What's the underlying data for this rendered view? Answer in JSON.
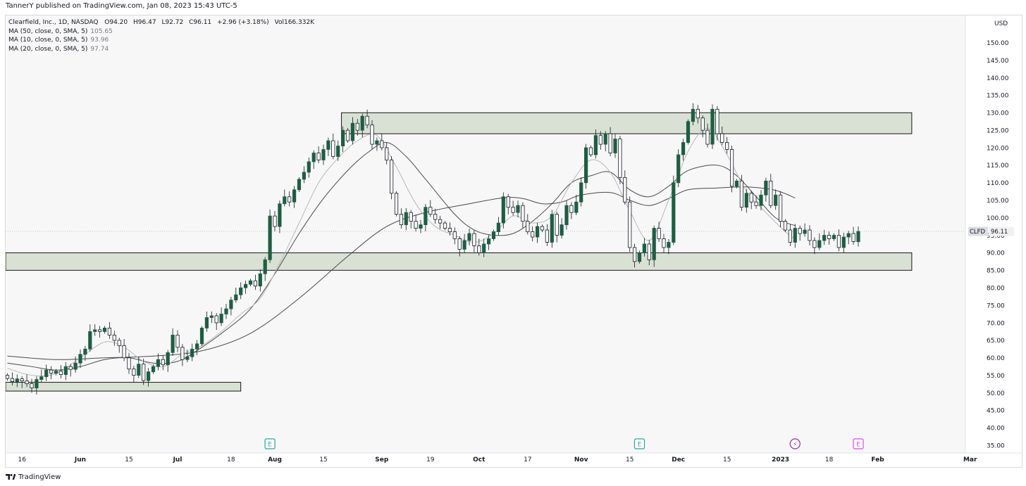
{
  "publish": {
    "author": "TannerY",
    "text": "TannerY published on TradingView.com, Jan 08, 2023 15:43 UTC-5"
  },
  "legend": {
    "symbol_line": "Clearfield, Inc., 1D, NASDAQ",
    "open": "O94.20",
    "high": "H96.47",
    "low": "L92.72",
    "close": "C96.11",
    "change": "+2.96 (+3.18%)",
    "volume": "Vol166.332K",
    "ma": [
      {
        "label": "MA (50, close, 0, SMA, 5)",
        "value": "105.65"
      },
      {
        "label": "MA (10, close, 0, SMA, 5)",
        "value": "93.96"
      },
      {
        "label": "MA (20, close, 0, SMA, 5)",
        "value": "97.74"
      }
    ]
  },
  "footer": {
    "brand": "TradingView",
    "logo_icon": "tradingview-logo-icon"
  },
  "colors": {
    "up": "#1e5e43",
    "down": "#131722",
    "zone_fill": "#d9e1d4",
    "zone_border": "#000000",
    "ma_line": "#4a4a4a",
    "ma_fast_line": "#b8b8b8",
    "earnings": "#26a69a",
    "dividend": "#9c27b0",
    "future_earnings": "#e040fb"
  },
  "chart_data": {
    "type": "candlestick",
    "title": "Clearfield, Inc., 1D, NASDAQ",
    "ylabel": "USD",
    "ylim": [
      33,
      157
    ],
    "y_ticks": [
      35,
      40,
      45,
      50,
      55,
      60,
      65,
      70,
      75,
      80,
      85,
      90,
      95,
      100,
      105,
      110,
      115,
      120,
      125,
      130,
      135,
      140,
      145,
      150
    ],
    "y_tick_labels": [
      "35.00",
      "40.00",
      "45.00",
      "50.00",
      "55.00",
      "60.00",
      "65.00",
      "70.00",
      "75.00",
      "80.00",
      "85.00",
      "90.00",
      "95.00",
      "100.00",
      "105.00",
      "110.00",
      "115.00",
      "120.00",
      "125.00",
      "130.00",
      "135.00",
      "140.00",
      "145.00",
      "150.00"
    ],
    "x_ticks": [
      {
        "label": "16",
        "bold": false,
        "bar": 3
      },
      {
        "label": "Jun",
        "bold": true,
        "bar": 15
      },
      {
        "label": "15",
        "bold": false,
        "bar": 25
      },
      {
        "label": "Jul",
        "bold": true,
        "bar": 35
      },
      {
        "label": "18",
        "bold": false,
        "bar": 46
      },
      {
        "label": "Aug",
        "bold": true,
        "bar": 55
      },
      {
        "label": "15",
        "bold": false,
        "bar": 65
      },
      {
        "label": "Sep",
        "bold": true,
        "bar": 77
      },
      {
        "label": "19",
        "bold": false,
        "bar": 87
      },
      {
        "label": "Oct",
        "bold": true,
        "bar": 97
      },
      {
        "label": "17",
        "bold": false,
        "bar": 107
      },
      {
        "label": "Nov",
        "bold": true,
        "bar": 118
      },
      {
        "label": "15",
        "bold": false,
        "bar": 128
      },
      {
        "label": "Dec",
        "bold": true,
        "bar": 138
      },
      {
        "label": "15",
        "bold": false,
        "bar": 148
      },
      {
        "label": "2023",
        "bold": true,
        "bar": 159
      },
      {
        "label": "18",
        "bold": false,
        "bar": 169
      },
      {
        "label": "Feb",
        "bold": true,
        "bar": 179
      },
      {
        "label": "Mar",
        "bold": true,
        "bar": 198
      }
    ],
    "last_price": {
      "symbol": "CLFD",
      "value": "96.11",
      "price": 96.11
    },
    "zones": [
      {
        "bar_start": 69,
        "bar_end": 186,
        "top": 130.0,
        "bottom": 124.0,
        "extend_left": false
      },
      {
        "bar_start": 0,
        "bar_end": 186,
        "top": 90.0,
        "bottom": 85.0,
        "extend_left": true
      },
      {
        "bar_start": 0,
        "bar_end": 48,
        "top": 53.0,
        "bottom": 50.5,
        "extend_left": true
      }
    ],
    "events": [
      {
        "type": "earnings",
        "label": "E",
        "bar": 54
      },
      {
        "type": "earnings",
        "label": "E",
        "bar": 130
      },
      {
        "type": "dividend",
        "label": "⚡",
        "bar": 162
      },
      {
        "type": "future_earnings",
        "label": "E",
        "bar": 175
      }
    ],
    "candles": [
      [
        55.0,
        54.1
      ],
      [
        54.1,
        53.2
      ],
      [
        53.2,
        54.0
      ],
      [
        54.0,
        53.4
      ],
      [
        53.4,
        52.6
      ],
      [
        52.6,
        51.4
      ],
      [
        51.4,
        53.8
      ],
      [
        53.8,
        54.6
      ],
      [
        54.6,
        56.5
      ],
      [
        56.5,
        55.6
      ],
      [
        55.6,
        56.2
      ],
      [
        56.2,
        55.2
      ],
      [
        55.2,
        57.5
      ],
      [
        57.5,
        56.7
      ],
      [
        56.7,
        58.5
      ],
      [
        58.5,
        61.0
      ],
      [
        61.0,
        62.5
      ],
      [
        62.5,
        67.5
      ],
      [
        67.5,
        68.0
      ],
      [
        68.0,
        67.5
      ],
      [
        67.5,
        68.5
      ],
      [
        68.5,
        66.5
      ],
      [
        66.5,
        65.0
      ],
      [
        65.0,
        63.5
      ],
      [
        63.5,
        60.0
      ],
      [
        60.0,
        56.8
      ],
      [
        56.8,
        55.0
      ],
      [
        55.0,
        58.2
      ],
      [
        58.2,
        53.5
      ],
      [
        53.5,
        56.0
      ],
      [
        56.0,
        57.5
      ],
      [
        57.5,
        59.5
      ],
      [
        59.5,
        58.0
      ],
      [
        58.0,
        61.5
      ],
      [
        61.5,
        66.5
      ],
      [
        66.5,
        63.0
      ],
      [
        63.0,
        59.5
      ],
      [
        59.5,
        60.3
      ],
      [
        60.3,
        62.5
      ],
      [
        62.5,
        64.0
      ],
      [
        64.0,
        68.5
      ],
      [
        68.5,
        71.5
      ],
      [
        71.5,
        72.0
      ],
      [
        72.0,
        70.0
      ],
      [
        70.0,
        72.5
      ],
      [
        72.5,
        74.0
      ],
      [
        74.0,
        76.5
      ],
      [
        76.5,
        78.0
      ],
      [
        78.0,
        80.0
      ],
      [
        80.0,
        81.0
      ],
      [
        81.0,
        82.0
      ],
      [
        82.0,
        80.5
      ],
      [
        80.5,
        84.0
      ],
      [
        84.0,
        88.0
      ],
      [
        88.0,
        100.5
      ],
      [
        100.5,
        97.5
      ],
      [
        97.5,
        104.0
      ],
      [
        104.0,
        106.0
      ],
      [
        106.0,
        104.5
      ],
      [
        104.5,
        108.0
      ],
      [
        108.0,
        111.0
      ],
      [
        111.0,
        113.0
      ],
      [
        113.0,
        116.0
      ],
      [
        116.0,
        118.5
      ],
      [
        118.5,
        116.5
      ],
      [
        116.5,
        119.5
      ],
      [
        119.5,
        122.0
      ],
      [
        122.0,
        117.5
      ],
      [
        117.5,
        120.5
      ],
      [
        120.5,
        125.0
      ],
      [
        125.0,
        122.0
      ],
      [
        122.0,
        127.0
      ],
      [
        127.0,
        125.0
      ],
      [
        125.0,
        129.0
      ],
      [
        129.0,
        126.5
      ],
      [
        126.5,
        121.0
      ],
      [
        121.0,
        122.0
      ],
      [
        122.0,
        120.0
      ],
      [
        120.0,
        116.5
      ],
      [
        116.5,
        107.0
      ],
      [
        107.0,
        101.0
      ],
      [
        101.0,
        98.0
      ],
      [
        98.0,
        101.5
      ],
      [
        101.5,
        99.0
      ],
      [
        99.0,
        97.0
      ],
      [
        97.0,
        98.0
      ],
      [
        98.0,
        103.0
      ],
      [
        103.0,
        101.0
      ],
      [
        101.0,
        99.5
      ],
      [
        99.5,
        98.5
      ],
      [
        98.5,
        97.0
      ],
      [
        97.0,
        96.0
      ],
      [
        96.0,
        94.0
      ],
      [
        94.0,
        91.0
      ],
      [
        91.0,
        93.5
      ],
      [
        93.5,
        95.5
      ],
      [
        95.5,
        92.0
      ],
      [
        92.0,
        90.0
      ],
      [
        90.0,
        92.5
      ],
      [
        92.5,
        94.0
      ],
      [
        94.0,
        96.0
      ],
      [
        96.0,
        98.5
      ],
      [
        98.5,
        106.0
      ],
      [
        106.0,
        103.0
      ],
      [
        103.0,
        101.5
      ],
      [
        101.5,
        103.5
      ],
      [
        103.5,
        99.0
      ],
      [
        99.0,
        96.0
      ],
      [
        96.0,
        94.5
      ],
      [
        94.5,
        97.5
      ],
      [
        97.5,
        96.5
      ],
      [
        96.5,
        93.0
      ],
      [
        93.0,
        101.0
      ],
      [
        101.0,
        95.0
      ],
      [
        95.0,
        98.0
      ],
      [
        98.0,
        103.5
      ],
      [
        103.5,
        101.5
      ],
      [
        101.5,
        104.5
      ],
      [
        104.5,
        110.0
      ],
      [
        110.0,
        120.0
      ],
      [
        120.0,
        118.0
      ],
      [
        118.0,
        123.5
      ],
      [
        123.5,
        121.0
      ],
      [
        121.0,
        124.0
      ],
      [
        124.0,
        118.5
      ],
      [
        118.5,
        122.5
      ],
      [
        122.5,
        111.5
      ],
      [
        111.5,
        104.5
      ],
      [
        104.5,
        91.5
      ],
      [
        91.5,
        87.5
      ],
      [
        87.5,
        90.0
      ],
      [
        90.0,
        92.5
      ],
      [
        92.5,
        88.0
      ],
      [
        88.0,
        97.0
      ],
      [
        97.0,
        94.0
      ],
      [
        94.0,
        91.5
      ],
      [
        91.5,
        93.0
      ],
      [
        93.0,
        110.0
      ],
      [
        110.0,
        118.0
      ],
      [
        118.0,
        121.5
      ],
      [
        121.5,
        127.5
      ],
      [
        127.5,
        131.0
      ],
      [
        131.0,
        128.5
      ],
      [
        128.5,
        125.0
      ],
      [
        125.0,
        121.0
      ],
      [
        121.0,
        131.0
      ],
      [
        131.0,
        124.0
      ],
      [
        124.0,
        121.5
      ],
      [
        121.5,
        119.5
      ],
      [
        119.5,
        109.0
      ],
      [
        109.0,
        110.5
      ],
      [
        110.5,
        103.0
      ],
      [
        103.0,
        107.0
      ],
      [
        107.0,
        104.5
      ],
      [
        104.5,
        103.5
      ],
      [
        103.5,
        106.5
      ],
      [
        106.5,
        110.5
      ],
      [
        110.5,
        103.5
      ],
      [
        103.5,
        106.5
      ],
      [
        106.5,
        99.0
      ],
      [
        99.0,
        96.5
      ],
      [
        96.5,
        93.0
      ],
      [
        93.0,
        97.0
      ],
      [
        97.0,
        95.5
      ],
      [
        95.5,
        96.5
      ],
      [
        96.5,
        93.5
      ],
      [
        93.5,
        91.5
      ],
      [
        91.5,
        93.5
      ],
      [
        93.5,
        95.0
      ],
      [
        95.0,
        94.0
      ],
      [
        94.0,
        95.0
      ],
      [
        95.0,
        91.5
      ],
      [
        91.5,
        94.5
      ],
      [
        94.5,
        95.5
      ],
      [
        95.5,
        93.2
      ],
      [
        93.15,
        96.11
      ]
    ],
    "ma_series": [
      {
        "name": "MA (50, close, 0, SMA, 5)",
        "color": "#4a4a4a",
        "start_bar": 0,
        "values": [
          [
            0,
            60.5
          ],
          [
            10,
            59.5
          ],
          [
            20,
            60.0
          ],
          [
            30,
            60.5
          ],
          [
            40,
            62.0
          ],
          [
            50,
            67.0
          ],
          [
            60,
            77.0
          ],
          [
            70,
            89.0
          ],
          [
            78,
            97.5
          ],
          [
            86,
            101.5
          ],
          [
            95,
            104.0
          ],
          [
            102,
            105.7
          ],
          [
            106,
            105.5
          ],
          [
            110,
            104.0
          ],
          [
            114,
            104.5
          ],
          [
            118,
            106.5
          ],
          [
            124,
            107.2
          ],
          [
            128,
            105.0
          ],
          [
            132,
            103.5
          ],
          [
            136,
            105.5
          ],
          [
            140,
            108.0
          ],
          [
            146,
            108.5
          ],
          [
            152,
            108.8
          ],
          [
            158,
            107.8
          ],
          [
            162,
            105.65
          ]
        ]
      },
      {
        "name": "MA (20, close, 0, SMA, 5)",
        "color": "#4a4a4a",
        "start_bar": 0,
        "values": [
          [
            0,
            58.5
          ],
          [
            5,
            57.5
          ],
          [
            10,
            56.5
          ],
          [
            15,
            57.5
          ],
          [
            20,
            59.5
          ],
          [
            25,
            60.0
          ],
          [
            30,
            58.5
          ],
          [
            35,
            59.0
          ],
          [
            40,
            63.0
          ],
          [
            45,
            68.0
          ],
          [
            50,
            74.0
          ],
          [
            55,
            84.0
          ],
          [
            60,
            95.5
          ],
          [
            65,
            105.5
          ],
          [
            70,
            113.5
          ],
          [
            74,
            118.5
          ],
          [
            78,
            121.5
          ],
          [
            82,
            117.5
          ],
          [
            86,
            111.0
          ],
          [
            92,
            101.0
          ],
          [
            96,
            96.5
          ],
          [
            100,
            95.0
          ],
          [
            104,
            95.5
          ],
          [
            108,
            99.0
          ],
          [
            112,
            104.0
          ],
          [
            116,
            110.0
          ],
          [
            120,
            112.0
          ],
          [
            124,
            113.0
          ],
          [
            128,
            108.0
          ],
          [
            132,
            106.0
          ],
          [
            136,
            109.0
          ],
          [
            140,
            113.5
          ],
          [
            146,
            115.0
          ],
          [
            150,
            112.0
          ],
          [
            154,
            106.0
          ],
          [
            158,
            100.0
          ],
          [
            162,
            97.74
          ]
        ]
      },
      {
        "name": "MA (10, close, 0, SMA, 5)",
        "color": "#b8b8b8",
        "start_bar": 0,
        "values": [
          [
            0,
            57.0
          ],
          [
            5,
            55.0
          ],
          [
            10,
            55.5
          ],
          [
            15,
            60.0
          ],
          [
            20,
            64.5
          ],
          [
            24,
            63.0
          ],
          [
            28,
            59.0
          ],
          [
            32,
            57.5
          ],
          [
            36,
            61.0
          ],
          [
            40,
            63.5
          ],
          [
            44,
            67.5
          ],
          [
            48,
            72.5
          ],
          [
            52,
            77.0
          ],
          [
            56,
            87.0
          ],
          [
            60,
            98.5
          ],
          [
            64,
            110.0
          ],
          [
            68,
            117.0
          ],
          [
            72,
            122.0
          ],
          [
            76,
            123.5
          ],
          [
            80,
            114.5
          ],
          [
            84,
            104.0
          ],
          [
            88,
            97.5
          ],
          [
            92,
            95.0
          ],
          [
            96,
            93.0
          ],
          [
            100,
            95.5
          ],
          [
            104,
            100.5
          ],
          [
            108,
            98.5
          ],
          [
            112,
            100.5
          ],
          [
            116,
            110.0
          ],
          [
            120,
            116.5
          ],
          [
            124,
            113.0
          ],
          [
            128,
            102.0
          ],
          [
            132,
            93.5
          ],
          [
            136,
            105.0
          ],
          [
            140,
            119.0
          ],
          [
            144,
            125.5
          ],
          [
            148,
            118.0
          ],
          [
            152,
            107.5
          ],
          [
            156,
            101.5
          ],
          [
            160,
            96.0
          ],
          [
            162,
            93.96
          ]
        ]
      }
    ]
  }
}
